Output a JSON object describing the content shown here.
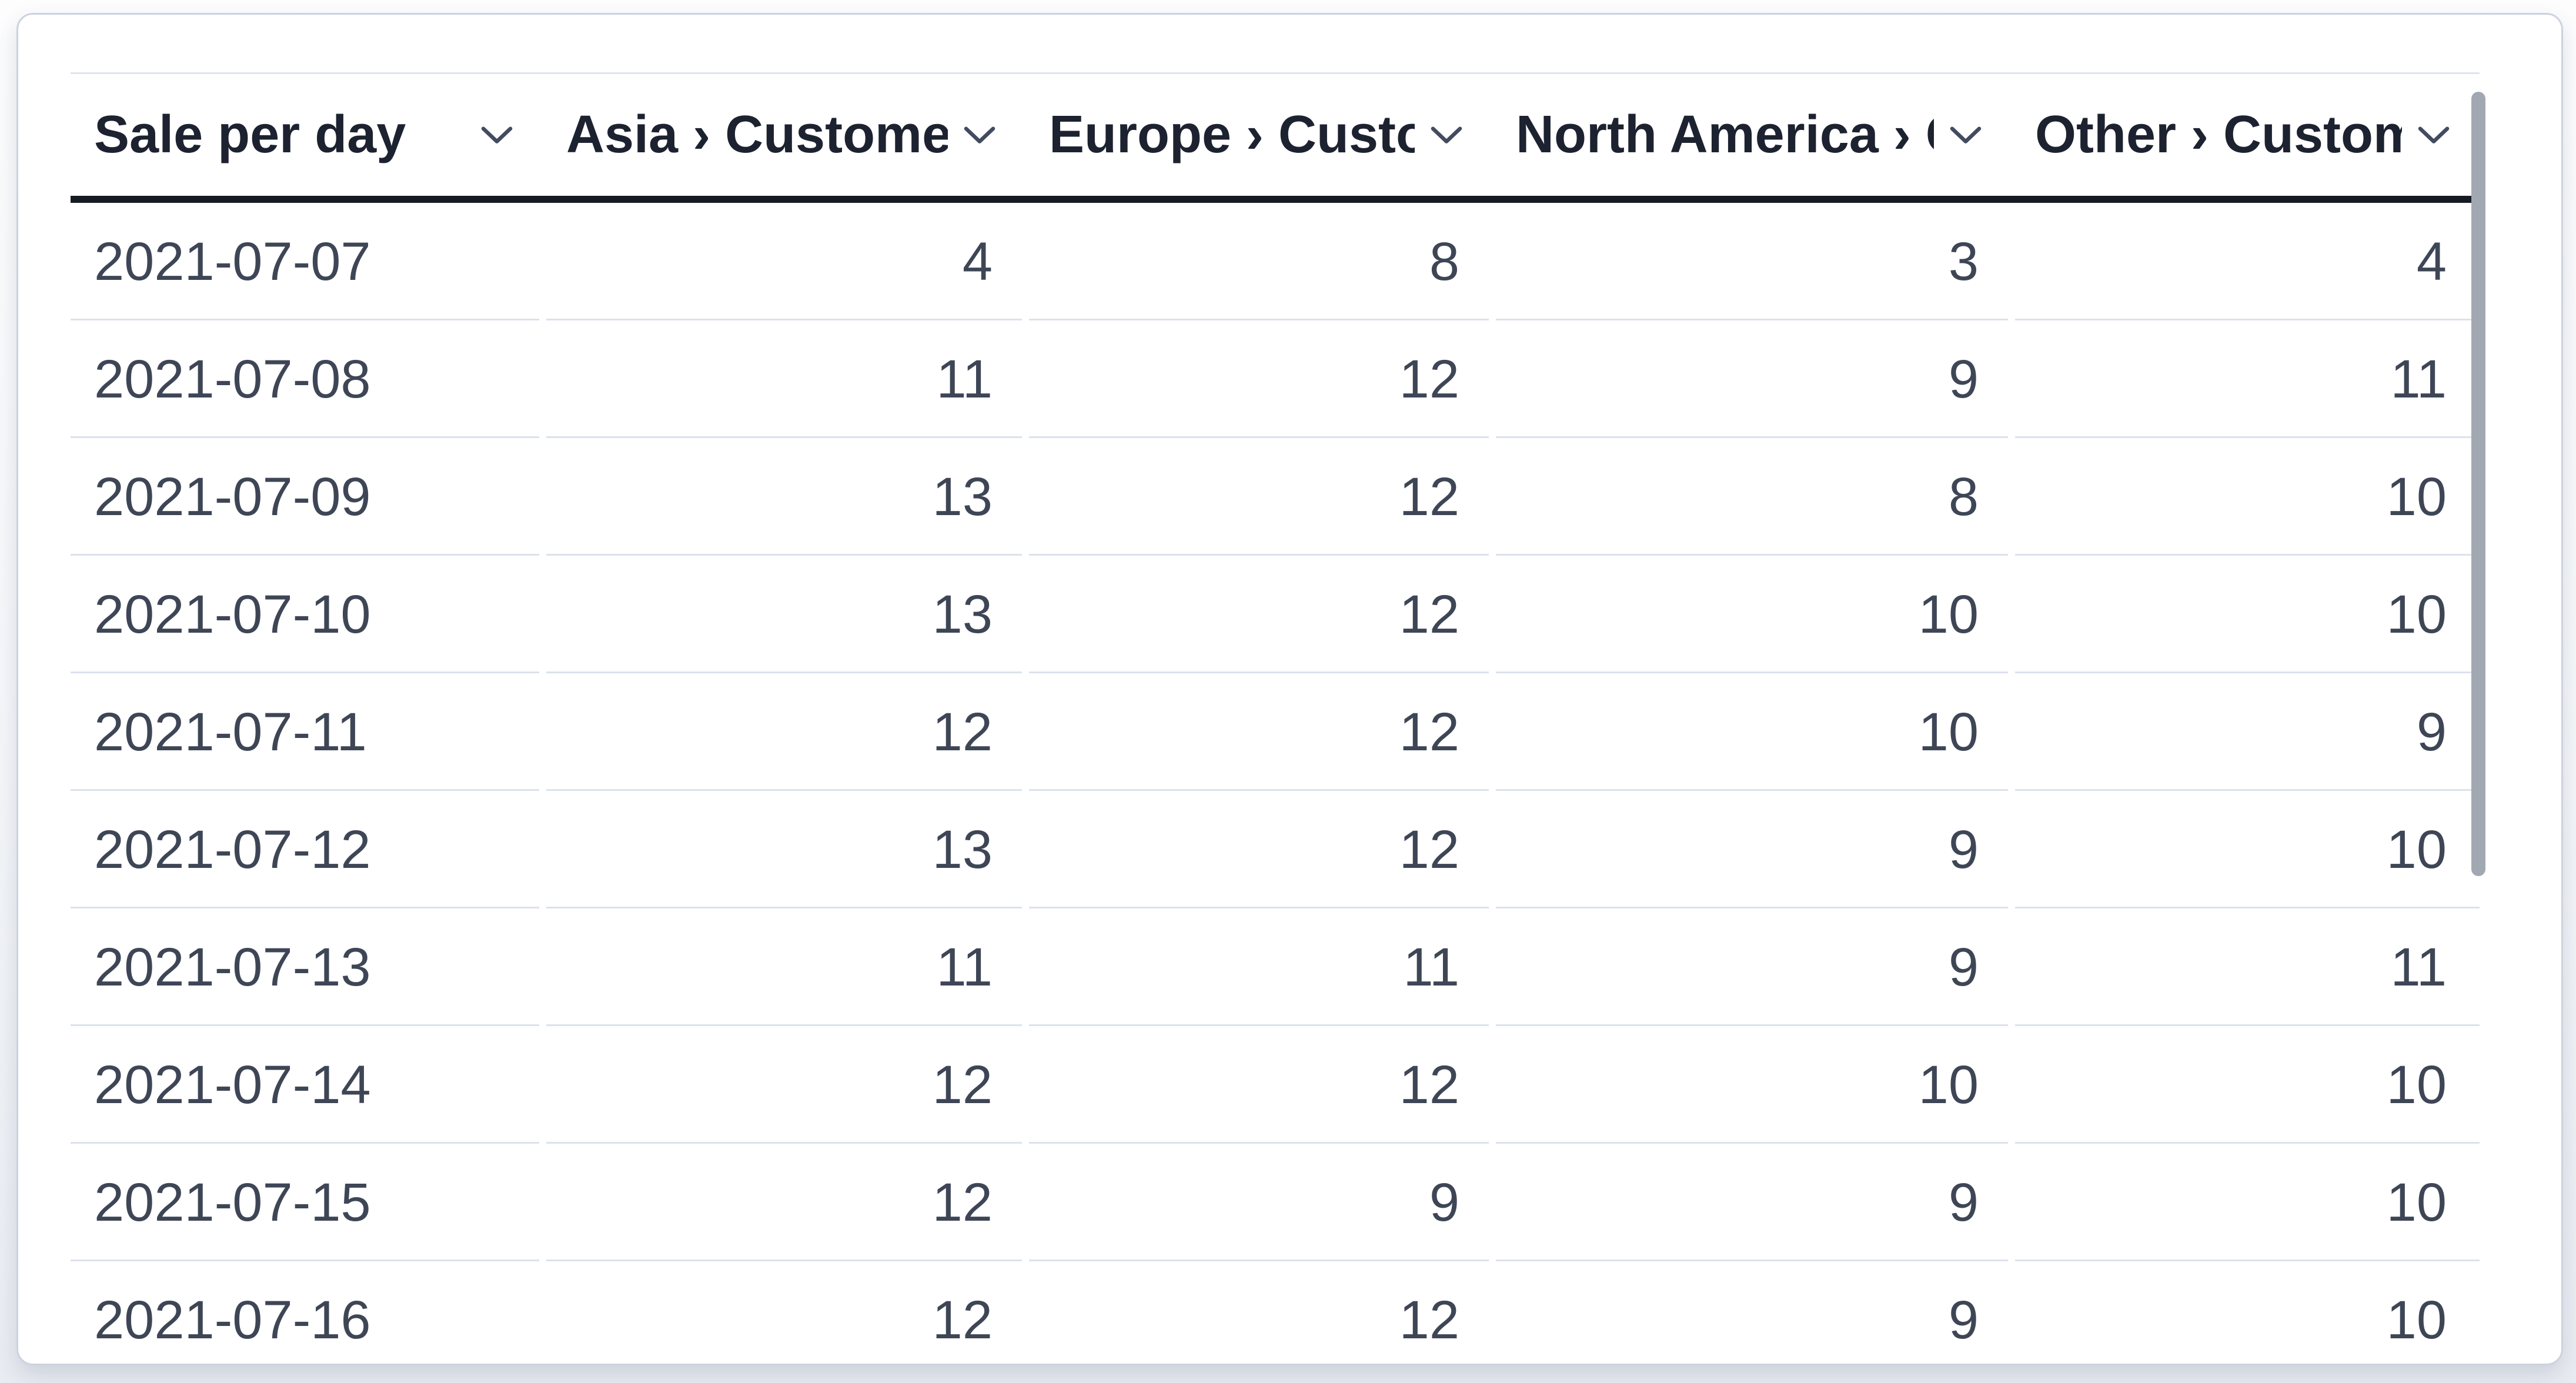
{
  "widget": {
    "type": "table-card",
    "title_column": "Sale per day"
  },
  "table": {
    "columns": [
      {
        "id": "sale-per-day",
        "label": "Sale per day",
        "align": "left"
      },
      {
        "id": "asia",
        "label": "Asia › Customers",
        "align": "right"
      },
      {
        "id": "europe",
        "label": "Europe › Customers",
        "align": "right"
      },
      {
        "id": "north-america",
        "label": "North America › Customers",
        "align": "right"
      },
      {
        "id": "other",
        "label": "Other › Customers",
        "align": "right"
      }
    ],
    "rows": [
      [
        "2021-07-07",
        4,
        8,
        3,
        4
      ],
      [
        "2021-07-08",
        11,
        12,
        9,
        11
      ],
      [
        "2021-07-09",
        13,
        12,
        8,
        10
      ],
      [
        "2021-07-10",
        13,
        12,
        10,
        10
      ],
      [
        "2021-07-11",
        12,
        12,
        10,
        9
      ],
      [
        "2021-07-12",
        13,
        12,
        9,
        10
      ],
      [
        "2021-07-13",
        11,
        11,
        9,
        11
      ],
      [
        "2021-07-14",
        12,
        12,
        10,
        10
      ],
      [
        "2021-07-15",
        12,
        9,
        9,
        10
      ],
      [
        "2021-07-16",
        12,
        12,
        9,
        10
      ]
    ]
  },
  "chart_data": {
    "type": "table",
    "title": "Sale per day",
    "categories": [
      "2021-07-07",
      "2021-07-08",
      "2021-07-09",
      "2021-07-10",
      "2021-07-11",
      "2021-07-12",
      "2021-07-13",
      "2021-07-14",
      "2021-07-15",
      "2021-07-16"
    ],
    "series": [
      {
        "name": "Asia › Customers",
        "values": [
          4,
          11,
          13,
          13,
          12,
          13,
          11,
          12,
          12,
          12
        ]
      },
      {
        "name": "Europe › Customers",
        "values": [
          8,
          12,
          12,
          12,
          12,
          12,
          11,
          12,
          9,
          12
        ]
      },
      {
        "name": "North America › Customers",
        "values": [
          3,
          9,
          8,
          10,
          10,
          9,
          9,
          10,
          9,
          9
        ]
      },
      {
        "name": "Other › Customers",
        "values": [
          4,
          11,
          10,
          10,
          9,
          10,
          11,
          10,
          10,
          10
        ]
      }
    ]
  },
  "icons": {
    "column_sort": "chevron-down-icon"
  },
  "colors": {
    "header_text": "#1d2230",
    "body_text": "#3e4656",
    "header_underline": "#161a22",
    "row_divider": "#dce2ec",
    "card_border": "#ccd3df",
    "card_background": "#ffffff",
    "scrollbar_thumb": "#a2a8b2",
    "chevron": "#434b5e"
  }
}
